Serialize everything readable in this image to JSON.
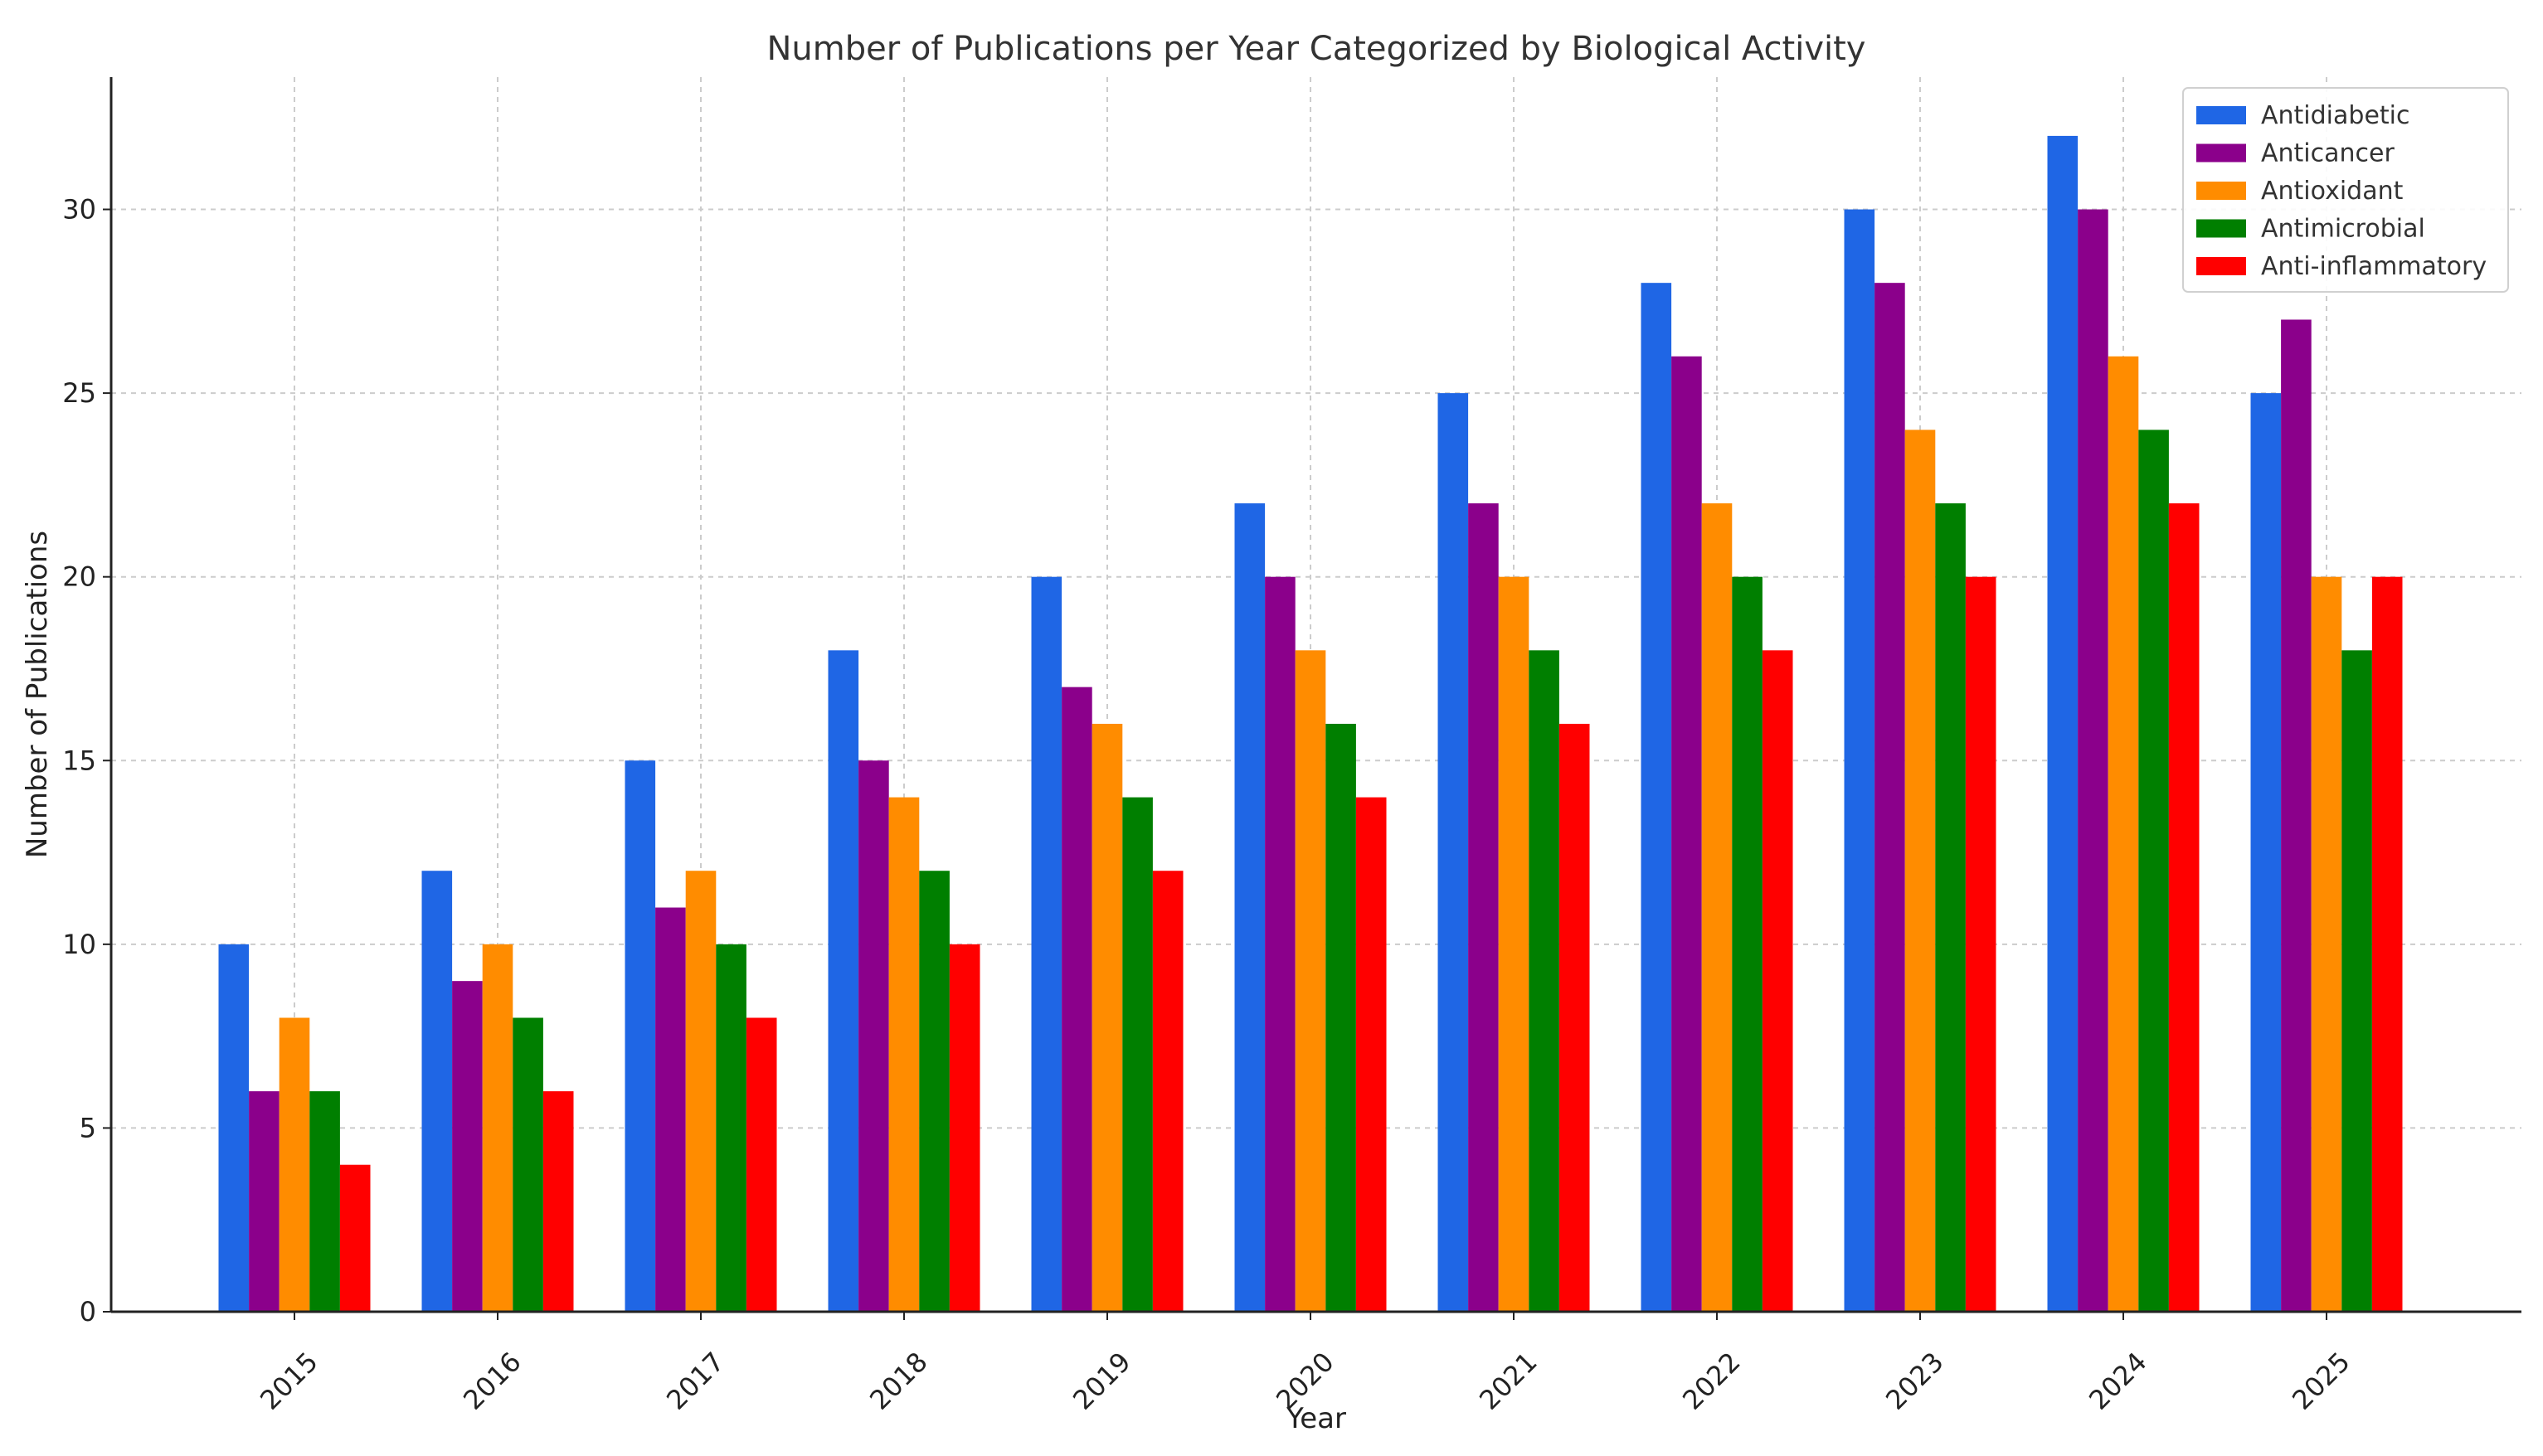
{
  "chart_data": {
    "type": "bar",
    "title": "Number of Publications per Year Categorized by Biological Activity",
    "xlabel": "Year",
    "ylabel": "Number of Publications",
    "categories": [
      "2015",
      "2016",
      "2017",
      "2018",
      "2019",
      "2020",
      "2021",
      "2022",
      "2023",
      "2024",
      "2025"
    ],
    "ylim": [
      0,
      33.6
    ],
    "yticks": [
      0,
      5,
      10,
      15,
      20,
      25,
      30
    ],
    "grid": true,
    "legend_position": "top-right",
    "series": [
      {
        "name": "Antidiabetic",
        "color": "#1f66e5",
        "values": [
          10,
          12,
          15,
          18,
          20,
          22,
          25,
          28,
          30,
          32,
          25
        ]
      },
      {
        "name": "Anticancer",
        "color": "#8b008b",
        "values": [
          6,
          9,
          11,
          15,
          17,
          20,
          22,
          26,
          28,
          30,
          27
        ]
      },
      {
        "name": "Antioxidant",
        "color": "#ff8c00",
        "values": [
          8,
          10,
          12,
          14,
          16,
          18,
          20,
          22,
          24,
          26,
          20
        ]
      },
      {
        "name": "Antimicrobial",
        "color": "#007f00",
        "values": [
          6,
          8,
          10,
          12,
          14,
          16,
          18,
          20,
          22,
          24,
          18
        ]
      },
      {
        "name": "Anti-inflammatory",
        "color": "#ff0000",
        "values": [
          4,
          6,
          8,
          10,
          12,
          14,
          16,
          18,
          20,
          22,
          20
        ]
      }
    ]
  }
}
